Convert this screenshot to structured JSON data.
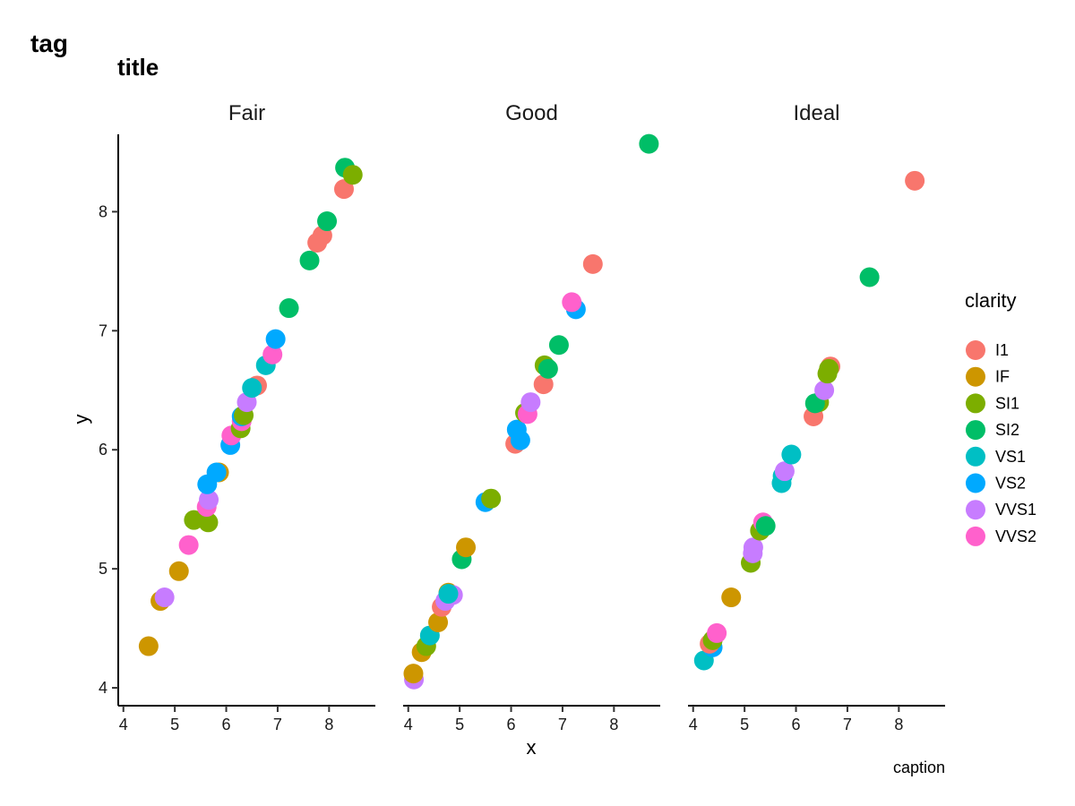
{
  "chart_data": {
    "type": "scatter",
    "tag": "tag",
    "title": "title",
    "xlabel": "x",
    "ylabel": "y",
    "caption": "caption",
    "xlim": [
      3.9,
      8.9
    ],
    "ylim": [
      3.85,
      8.65
    ],
    "x_ticks": [
      4,
      5,
      6,
      7,
      8
    ],
    "y_ticks": [
      4,
      5,
      6,
      7,
      8
    ],
    "grid": false,
    "legend": {
      "title": "clarity",
      "placement": "right",
      "entries": [
        {
          "name": "I1",
          "color": "#F8766D"
        },
        {
          "name": "IF",
          "color": "#CD9600"
        },
        {
          "name": "SI1",
          "color": "#7CAE00"
        },
        {
          "name": "SI2",
          "color": "#00BE67"
        },
        {
          "name": "VS1",
          "color": "#00BFC4"
        },
        {
          "name": "VS2",
          "color": "#00A9FF"
        },
        {
          "name": "VVS1",
          "color": "#C77CFF"
        },
        {
          "name": "VVS2",
          "color": "#FF61CC"
        }
      ]
    },
    "panels": [
      {
        "label": "Fair",
        "points": [
          {
            "x": 4.49,
            "y": 4.35,
            "clarity": "IF"
          },
          {
            "x": 4.72,
            "y": 4.73,
            "clarity": "IF"
          },
          {
            "x": 4.8,
            "y": 4.76,
            "clarity": "VVS1"
          },
          {
            "x": 5.08,
            "y": 4.98,
            "clarity": "IF"
          },
          {
            "x": 5.27,
            "y": 5.2,
            "clarity": "VVS2"
          },
          {
            "x": 5.37,
            "y": 5.41,
            "clarity": "SI1"
          },
          {
            "x": 5.65,
            "y": 5.39,
            "clarity": "SI1"
          },
          {
            "x": 5.62,
            "y": 5.52,
            "clarity": "VVS2"
          },
          {
            "x": 5.66,
            "y": 5.58,
            "clarity": "VVS1"
          },
          {
            "x": 5.63,
            "y": 5.71,
            "clarity": "VS2"
          },
          {
            "x": 5.86,
            "y": 5.81,
            "clarity": "IF"
          },
          {
            "x": 5.81,
            "y": 5.81,
            "clarity": "VS2"
          },
          {
            "x": 6.08,
            "y": 6.04,
            "clarity": "VS2"
          },
          {
            "x": 6.1,
            "y": 6.12,
            "clarity": "VVS2"
          },
          {
            "x": 6.28,
            "y": 6.18,
            "clarity": "SI1"
          },
          {
            "x": 6.3,
            "y": 6.24,
            "clarity": "VVS2"
          },
          {
            "x": 6.3,
            "y": 6.28,
            "clarity": "VS2"
          },
          {
            "x": 6.34,
            "y": 6.29,
            "clarity": "SI1"
          },
          {
            "x": 6.4,
            "y": 6.4,
            "clarity": "VVS1"
          },
          {
            "x": 6.6,
            "y": 6.54,
            "clarity": "I1"
          },
          {
            "x": 6.5,
            "y": 6.52,
            "clarity": "VS1"
          },
          {
            "x": 6.77,
            "y": 6.71,
            "clarity": "VS1"
          },
          {
            "x": 6.9,
            "y": 6.8,
            "clarity": "VVS2"
          },
          {
            "x": 6.96,
            "y": 6.93,
            "clarity": "VS2"
          },
          {
            "x": 7.22,
            "y": 7.19,
            "clarity": "SI2"
          },
          {
            "x": 7.62,
            "y": 7.59,
            "clarity": "SI2"
          },
          {
            "x": 7.77,
            "y": 7.74,
            "clarity": "I1"
          },
          {
            "x": 7.87,
            "y": 7.8,
            "clarity": "I1"
          },
          {
            "x": 7.96,
            "y": 7.92,
            "clarity": "SI2"
          },
          {
            "x": 8.29,
            "y": 8.19,
            "clarity": "I1"
          },
          {
            "x": 8.31,
            "y": 8.37,
            "clarity": "SI2"
          },
          {
            "x": 8.46,
            "y": 8.31,
            "clarity": "SI1"
          }
        ]
      },
      {
        "label": "Good",
        "points": [
          {
            "x": 4.11,
            "y": 4.07,
            "clarity": "VVS1"
          },
          {
            "x": 4.1,
            "y": 4.12,
            "clarity": "IF"
          },
          {
            "x": 4.26,
            "y": 4.3,
            "clarity": "IF"
          },
          {
            "x": 4.35,
            "y": 4.35,
            "clarity": "SI1"
          },
          {
            "x": 4.42,
            "y": 4.44,
            "clarity": "VS1"
          },
          {
            "x": 4.58,
            "y": 4.55,
            "clarity": "IF"
          },
          {
            "x": 4.65,
            "y": 4.68,
            "clarity": "I1"
          },
          {
            "x": 4.72,
            "y": 4.73,
            "clarity": "VVS1"
          },
          {
            "x": 4.78,
            "y": 4.8,
            "clarity": "IF"
          },
          {
            "x": 4.87,
            "y": 4.78,
            "clarity": "VVS1"
          },
          {
            "x": 4.78,
            "y": 4.79,
            "clarity": "VS1"
          },
          {
            "x": 5.04,
            "y": 5.08,
            "clarity": "SI2"
          },
          {
            "x": 5.12,
            "y": 5.18,
            "clarity": "IF"
          },
          {
            "x": 5.5,
            "y": 5.56,
            "clarity": "VS2"
          },
          {
            "x": 5.61,
            "y": 5.59,
            "clarity": "SI1"
          },
          {
            "x": 6.08,
            "y": 6.05,
            "clarity": "I1"
          },
          {
            "x": 6.18,
            "y": 6.08,
            "clarity": "VS2"
          },
          {
            "x": 6.11,
            "y": 6.17,
            "clarity": "VS2"
          },
          {
            "x": 6.27,
            "y": 6.31,
            "clarity": "SI1"
          },
          {
            "x": 6.32,
            "y": 6.3,
            "clarity": "VVS2"
          },
          {
            "x": 6.38,
            "y": 6.4,
            "clarity": "VVS1"
          },
          {
            "x": 6.63,
            "y": 6.55,
            "clarity": "I1"
          },
          {
            "x": 6.65,
            "y": 6.71,
            "clarity": "SI1"
          },
          {
            "x": 6.72,
            "y": 6.68,
            "clarity": "SI2"
          },
          {
            "x": 6.93,
            "y": 6.88,
            "clarity": "SI2"
          },
          {
            "x": 7.26,
            "y": 7.18,
            "clarity": "VS2"
          },
          {
            "x": 7.18,
            "y": 7.24,
            "clarity": "VVS2"
          },
          {
            "x": 7.59,
            "y": 7.56,
            "clarity": "I1"
          },
          {
            "x": 8.68,
            "y": 8.57,
            "clarity": "SI2"
          }
        ]
      },
      {
        "label": "Ideal",
        "points": [
          {
            "x": 4.21,
            "y": 4.23,
            "clarity": "VS1"
          },
          {
            "x": 4.38,
            "y": 4.34,
            "clarity": "VS2"
          },
          {
            "x": 4.32,
            "y": 4.37,
            "clarity": "I1"
          },
          {
            "x": 4.38,
            "y": 4.4,
            "clarity": "SI1"
          },
          {
            "x": 4.46,
            "y": 4.46,
            "clarity": "VVS2"
          },
          {
            "x": 4.74,
            "y": 4.76,
            "clarity": "IF"
          },
          {
            "x": 5.12,
            "y": 5.05,
            "clarity": "SI1"
          },
          {
            "x": 5.16,
            "y": 5.13,
            "clarity": "VVS1"
          },
          {
            "x": 5.17,
            "y": 5.18,
            "clarity": "VVS1"
          },
          {
            "x": 5.3,
            "y": 5.32,
            "clarity": "SI1"
          },
          {
            "x": 5.36,
            "y": 5.39,
            "clarity": "VVS2"
          },
          {
            "x": 5.41,
            "y": 5.36,
            "clarity": "SI2"
          },
          {
            "x": 5.72,
            "y": 5.72,
            "clarity": "VS1"
          },
          {
            "x": 5.74,
            "y": 5.78,
            "clarity": "VS1"
          },
          {
            "x": 5.78,
            "y": 5.82,
            "clarity": "VVS1"
          },
          {
            "x": 5.91,
            "y": 5.96,
            "clarity": "VS1"
          },
          {
            "x": 6.34,
            "y": 6.28,
            "clarity": "I1"
          },
          {
            "x": 6.45,
            "y": 6.4,
            "clarity": "SI1"
          },
          {
            "x": 6.37,
            "y": 6.39,
            "clarity": "SI2"
          },
          {
            "x": 6.55,
            "y": 6.5,
            "clarity": "VVS1"
          },
          {
            "x": 6.67,
            "y": 6.7,
            "clarity": "I1"
          },
          {
            "x": 6.64,
            "y": 6.68,
            "clarity": "SI1"
          },
          {
            "x": 6.61,
            "y": 6.64,
            "clarity": "SI1"
          },
          {
            "x": 7.43,
            "y": 7.45,
            "clarity": "SI2"
          },
          {
            "x": 8.31,
            "y": 8.26,
            "clarity": "I1"
          }
        ]
      }
    ]
  }
}
